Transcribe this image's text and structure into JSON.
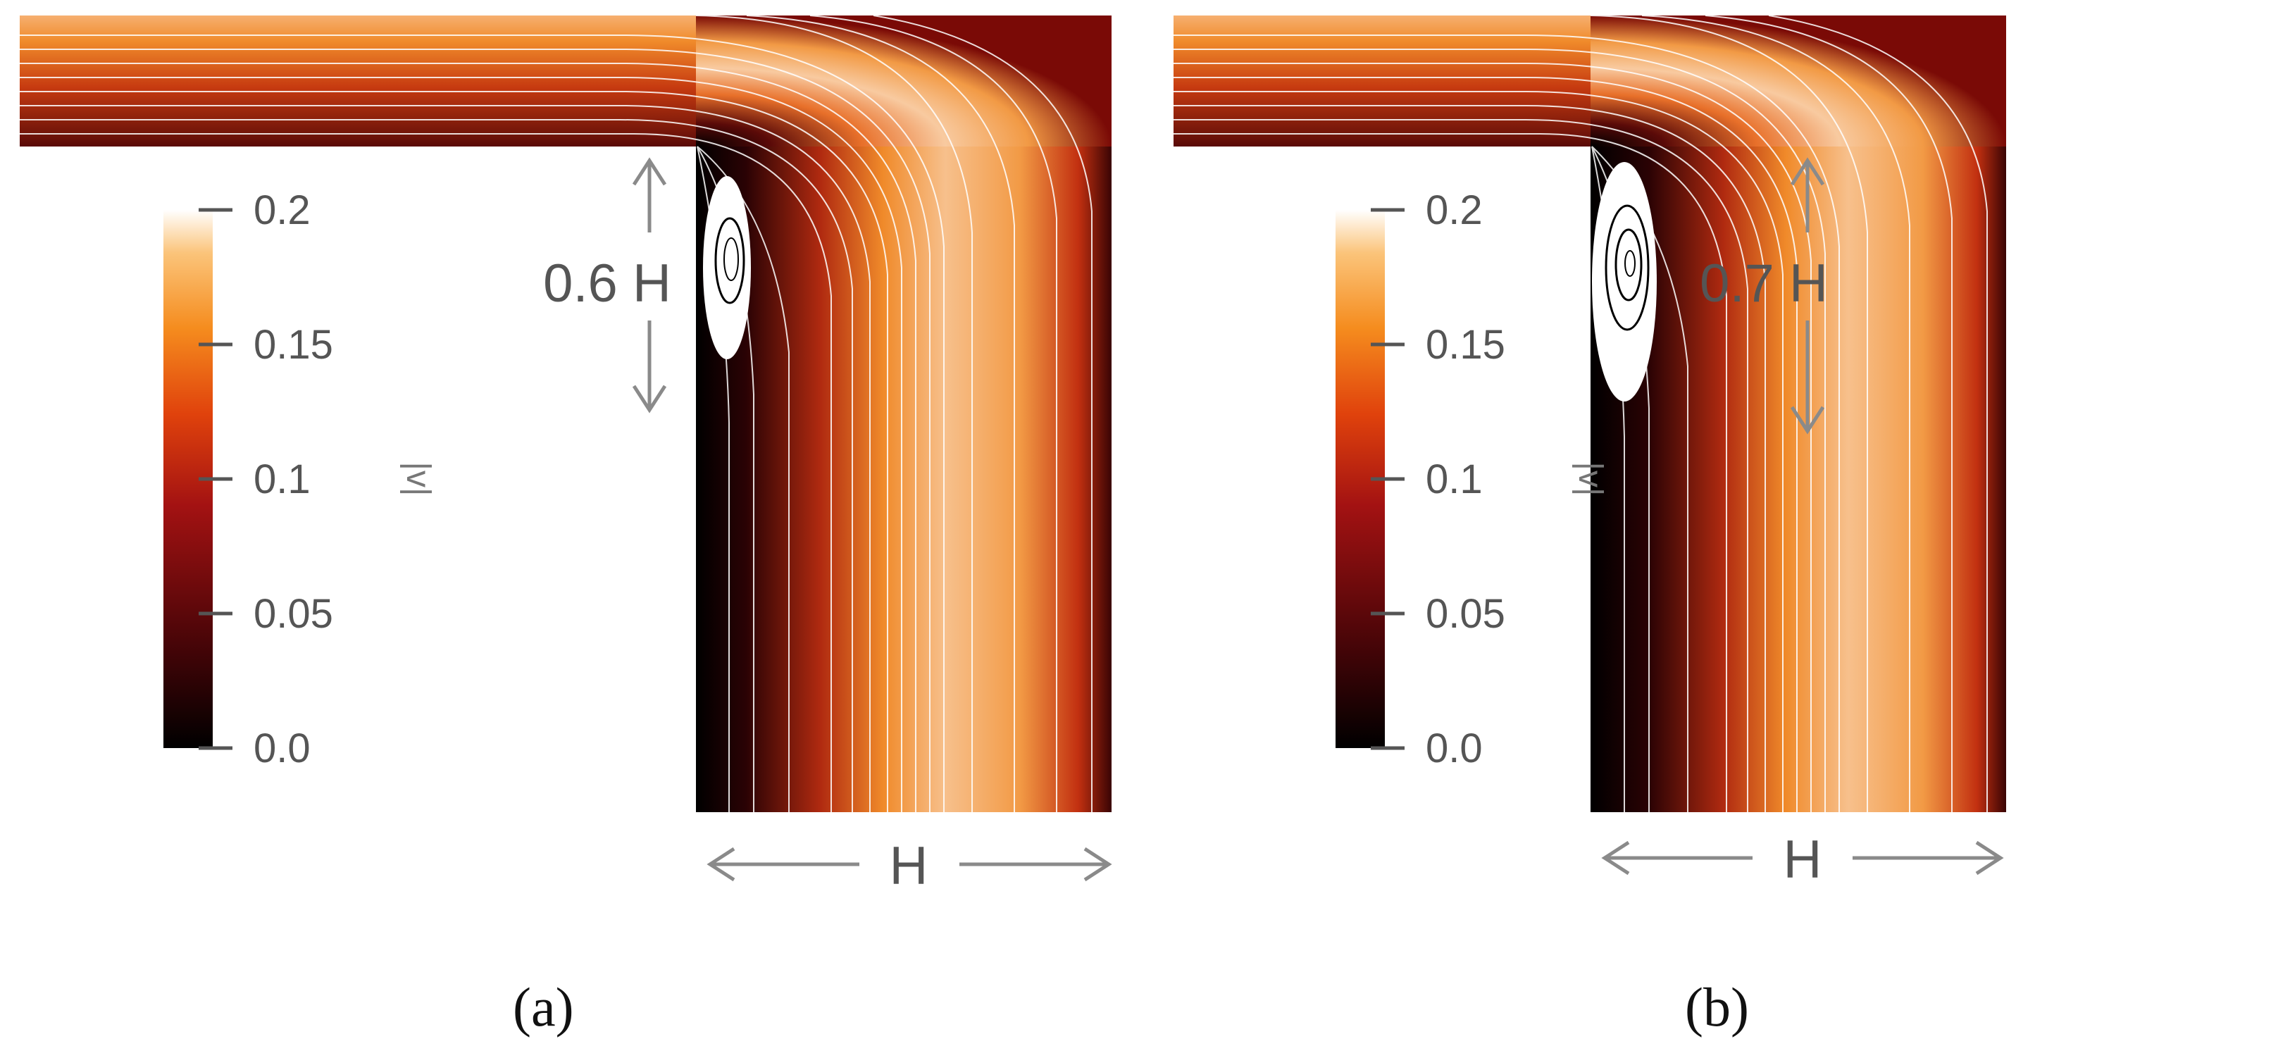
{
  "colorbar": {
    "ticks": [
      "0.2",
      "0.15",
      "0.1",
      "0.05",
      "0.0"
    ],
    "label": "|v|",
    "colors": [
      "#000000",
      "#4a0508",
      "#a31212",
      "#e0420c",
      "#f58c1e",
      "#fbc47a",
      "#ffffff"
    ]
  },
  "dimension_label": "H",
  "panels": [
    {
      "id": "a",
      "label_text": "(a)",
      "vortex_height_label": "0.6 H"
    },
    {
      "id": "b",
      "label_text": "(b)",
      "vortex_height_label": "0.7 H"
    }
  ],
  "colors": {
    "annotation_gray": "#8a8a8a",
    "streamline": "#ffffff",
    "background": "#ffffff"
  }
}
